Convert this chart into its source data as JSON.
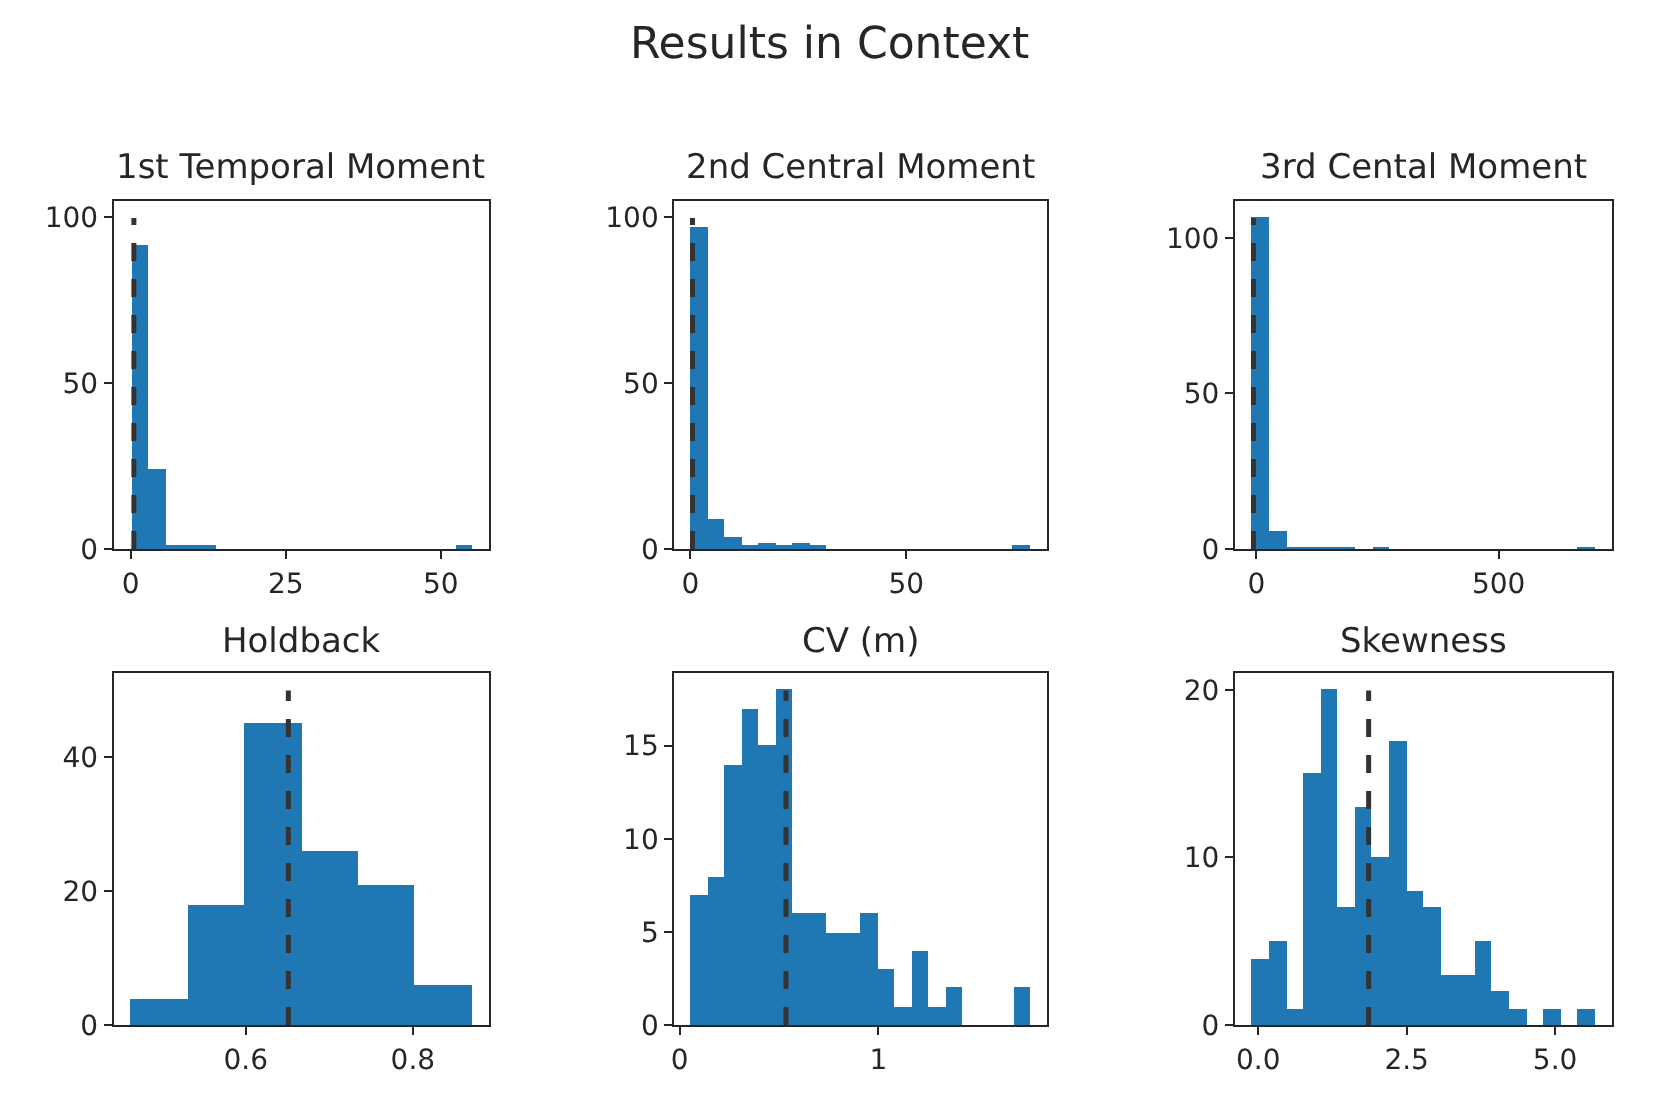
{
  "chart_data": [
    {
      "type": "histogram",
      "title": "1st Temporal Moment",
      "annotations": [
        "Results in Context"
      ],
      "color": "#1f77b4",
      "bins": [
        0,
        2.75,
        5.5,
        8.25,
        11,
        13.75,
        16.5,
        19.25,
        22,
        24.75,
        27.5,
        30.25,
        33,
        35.75,
        38.5,
        41.25,
        44,
        46.75,
        49.5,
        52.25,
        55
      ],
      "values": [
        92,
        24,
        1,
        1,
        1,
        0,
        0,
        0,
        0,
        0,
        0,
        0,
        0,
        0,
        0,
        0,
        0,
        0,
        0,
        1
      ],
      "xlim": [
        -2.75,
        57.75
      ],
      "xticks": [
        0,
        25,
        50
      ],
      "ylim": [
        0,
        105
      ],
      "yticks": [
        0,
        50,
        100
      ],
      "ref_lines": [
        {
          "axis": "x",
          "value": 0.5,
          "color": "#333333",
          "line_style": "dashed"
        }
      ]
    },
    {
      "type": "histogram",
      "title": "2nd Central Moment",
      "color": "#1f77b4",
      "bins": [
        0.2,
        4.1,
        8,
        12,
        15.9,
        19.8,
        23.7,
        27.7,
        31.6,
        35.5,
        39.4,
        43.4,
        47.3,
        51.2,
        55.2,
        59.1,
        63,
        66.9,
        70.9,
        74.8,
        78.7
      ],
      "values": [
        97,
        9,
        4,
        1,
        2,
        1,
        2,
        1,
        0,
        0,
        0,
        0,
        0,
        0,
        0,
        0,
        0,
        0,
        0,
        1
      ],
      "xlim": [
        -3.7,
        82.7
      ],
      "xticks": [
        0,
        50
      ],
      "ylim": [
        0,
        105
      ],
      "yticks": [
        0,
        50,
        100
      ],
      "ref_lines": [
        {
          "axis": "x",
          "value": 0.5,
          "color": "#333333",
          "line_style": "dashed"
        }
      ]
    },
    {
      "type": "histogram",
      "title": "3rd Cental Moment",
      "color": "#1f77b4",
      "bins": [
        -9,
        26,
        62,
        97,
        132,
        168,
        203,
        239,
        274,
        309,
        345,
        380,
        415,
        451,
        486,
        521,
        557,
        592,
        627,
        663,
        698
      ],
      "values": [
        107,
        6,
        1,
        1,
        1,
        1,
        0,
        1,
        0,
        0,
        0,
        0,
        0,
        0,
        0,
        0,
        0,
        0,
        0,
        1
      ],
      "xlim": [
        -44,
        734
      ],
      "xticks": [
        0,
        500
      ],
      "ylim": [
        0,
        112
      ],
      "yticks": [
        0,
        50,
        100
      ],
      "ref_lines": [
        {
          "axis": "x",
          "value": -6,
          "color": "#333333",
          "line_style": "dashed"
        }
      ]
    },
    {
      "type": "histogram",
      "title": "Holdback",
      "color": "#1f77b4",
      "bins": [
        0.462,
        0.53,
        0.598,
        0.666,
        0.734,
        0.802,
        0.87
      ],
      "values": [
        4,
        18,
        45,
        26,
        21,
        6
      ],
      "xlim": [
        0.442,
        0.891
      ],
      "xticks": [
        0.6,
        0.8
      ],
      "ylim": [
        0,
        52.5
      ],
      "yticks": [
        0,
        20,
        40
      ],
      "ref_lines": [
        {
          "axis": "x",
          "value": 0.651,
          "color": "#333333",
          "line_style": "dashed"
        }
      ]
    },
    {
      "type": "histogram",
      "title": "CV (m)",
      "color": "#1f77b4",
      "bins": [
        0.058,
        0.143,
        0.229,
        0.314,
        0.4,
        0.485,
        0.571,
        0.656,
        0.741,
        0.827,
        0.912,
        0.998,
        1.083,
        1.168,
        1.254,
        1.339,
        1.425,
        1.51,
        1.596,
        1.681,
        1.766
      ],
      "values": [
        7,
        8,
        14,
        17,
        15,
        18,
        6,
        6,
        5,
        5,
        6,
        3,
        1,
        4,
        1,
        2,
        0,
        0,
        0,
        2
      ],
      "xlim": [
        -0.027,
        1.852
      ],
      "xticks": [
        0,
        1
      ],
      "ylim": [
        0,
        18.9
      ],
      "yticks": [
        0,
        5,
        10,
        15
      ],
      "ref_lines": [
        {
          "axis": "x",
          "value": 0.535,
          "color": "#333333",
          "line_style": "dashed"
        }
      ]
    },
    {
      "type": "histogram",
      "title": "Skewness",
      "color": "#1f77b4",
      "bins": [
        -0.105,
        0.184,
        0.472,
        0.761,
        1.05,
        1.338,
        1.627,
        1.915,
        2.204,
        2.493,
        2.781,
        3.07,
        3.358,
        3.647,
        3.936,
        4.224,
        4.513,
        4.801,
        5.09,
        5.379,
        5.667
      ],
      "values": [
        4,
        5,
        1,
        15,
        20,
        7,
        13,
        10,
        17,
        8,
        7,
        3,
        3,
        5,
        2,
        1,
        0,
        1,
        0,
        1
      ],
      "xlim": [
        -0.39,
        5.96
      ],
      "xticks": [
        {
          "value": 0,
          "label": "0.0"
        },
        2.5,
        {
          "value": 5,
          "label": "5.0"
        }
      ],
      "ylim": [
        0,
        21
      ],
      "yticks": [
        0,
        10,
        20
      ],
      "ref_lines": [
        {
          "axis": "x",
          "value": 1.86,
          "color": "#333333",
          "line_style": "dashed"
        }
      ]
    }
  ]
}
